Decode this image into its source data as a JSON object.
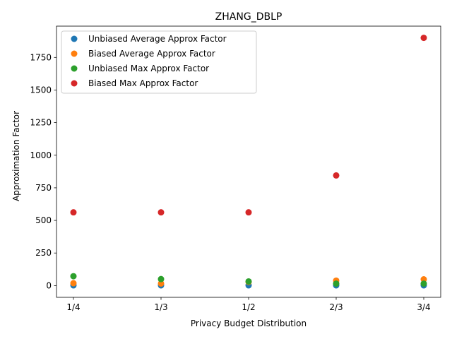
{
  "chart_data": {
    "type": "scatter",
    "title": "ZHANG_DBLP",
    "xlabel": "Privacy Budget Distribution",
    "ylabel": "Approximation Factor",
    "categories": [
      "1/4",
      "1/3",
      "1/2",
      "2/3",
      "3/4"
    ],
    "ylim": [
      -90,
      1990
    ],
    "yticks": [
      0,
      250,
      500,
      750,
      1000,
      1250,
      1500,
      1750
    ],
    "grid": false,
    "legend_position": "top-left",
    "series": [
      {
        "name": "Unbiased Average Approx Factor",
        "color": "#1f77b4",
        "values": [
          2,
          2,
          2,
          2,
          2
        ]
      },
      {
        "name": "Biased Average Approx Factor",
        "color": "#ff7f0e",
        "values": [
          18,
          16,
          28,
          38,
          48
        ]
      },
      {
        "name": "Unbiased Max Approx Factor",
        "color": "#2ca02c",
        "values": [
          72,
          50,
          32,
          15,
          15
        ]
      },
      {
        "name": "Biased Max Approx Factor",
        "color": "#d62728",
        "values": [
          562,
          562,
          562,
          845,
          1900
        ]
      }
    ]
  }
}
